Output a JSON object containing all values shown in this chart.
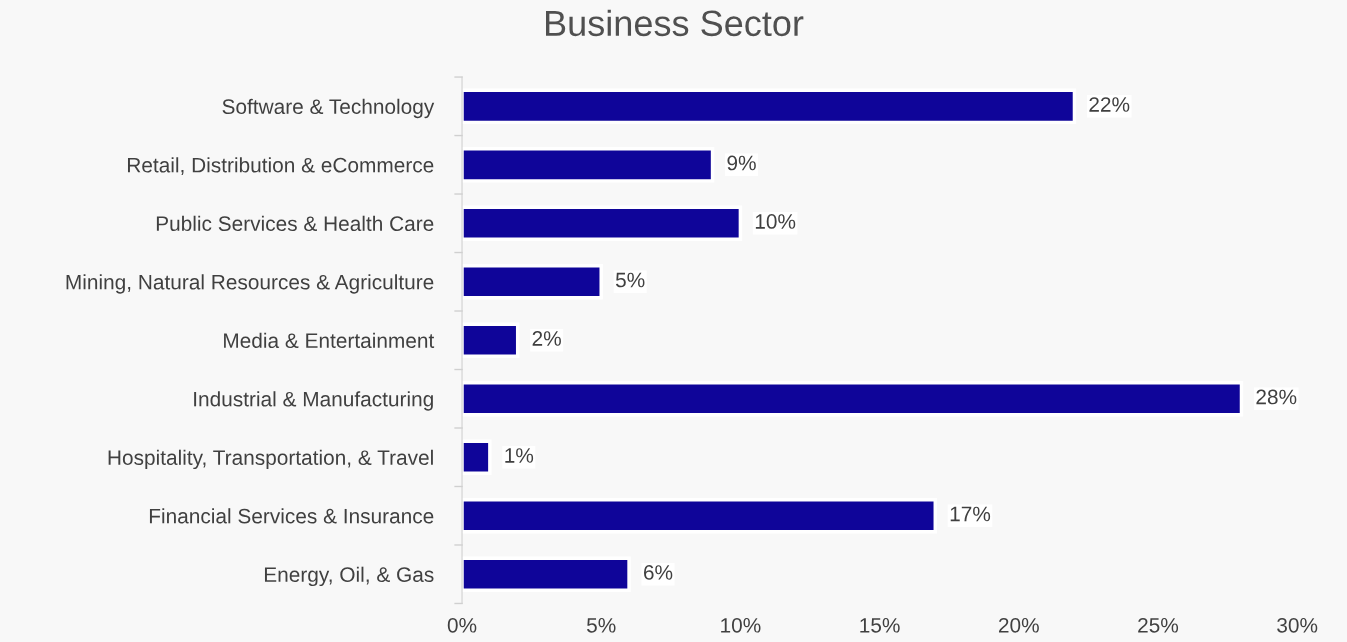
{
  "chart_data": {
    "type": "bar",
    "orientation": "horizontal",
    "title": "Business Sector",
    "categories": [
      "Software & Technology",
      "Retail, Distribution & eCommerce",
      "Public Services & Health Care",
      "Mining, Natural Resources & Agriculture",
      "Media & Entertainment",
      "Industrial & Manufacturing",
      "Hospitality, Transportation, & Travel",
      "Financial Services & Insurance",
      "Energy, Oil, & Gas"
    ],
    "values": [
      22,
      9,
      10,
      5,
      2,
      28,
      1,
      17,
      6
    ],
    "value_labels": [
      "22%",
      "9%",
      "10%",
      "5%",
      "2%",
      "28%",
      "1%",
      "17%",
      "6%"
    ],
    "color": "#0f0599",
    "xlim": [
      0,
      30
    ],
    "xticks": [
      {
        "value": 0,
        "label": "0%"
      },
      {
        "value": 5,
        "label": "5%"
      },
      {
        "value": 10,
        "label": "10%"
      },
      {
        "value": 15,
        "label": "15%"
      },
      {
        "value": 20,
        "label": "20%"
      },
      {
        "value": 25,
        "label": "25%"
      },
      {
        "value": 30,
        "label": "30%"
      }
    ],
    "grid": false,
    "legend": false
  }
}
